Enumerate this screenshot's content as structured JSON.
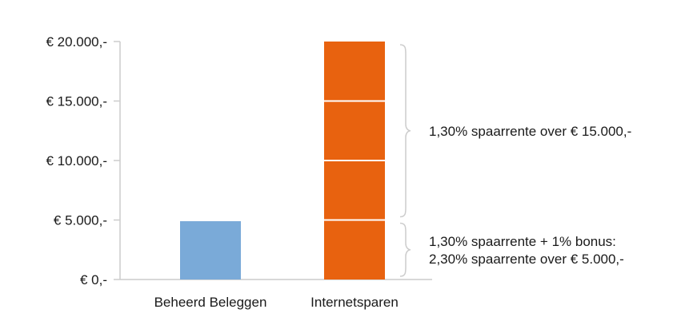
{
  "chart_data": {
    "type": "bar",
    "title": "",
    "xlabel": "",
    "ylabel": "",
    "ylim": [
      0,
      20000
    ],
    "grid": false,
    "y_ticks": [
      {
        "value": 0,
        "label": "€ 0,-"
      },
      {
        "value": 5000,
        "label": "€ 5.000,-"
      },
      {
        "value": 10000,
        "label": "€ 10.000,-"
      },
      {
        "value": 15000,
        "label": "€ 15.000,-"
      },
      {
        "value": 20000,
        "label": "€ 20.000,-"
      }
    ],
    "categories": [
      "Beheerd Beleggen",
      "Internetsparen"
    ],
    "bars": [
      {
        "category": "Beheerd Beleggen",
        "value": 4900,
        "color": "#7aaad8"
      },
      {
        "category": "Internetsparen",
        "value": 20000,
        "color": "#e8620f",
        "segment_dividers": [
          5000,
          10000,
          15000
        ]
      }
    ],
    "annotations": [
      {
        "lines": [
          "1,30% spaarrente over € 15.000,-"
        ],
        "range": [
          5000,
          20000
        ]
      },
      {
        "lines": [
          "1,30% spaarrente + 1% bonus:",
          "2,30% spaarrente over € 5.000,-"
        ],
        "range": [
          0,
          5000
        ]
      }
    ],
    "colors": {
      "axis": "#cccccc",
      "bracket": "#cccccc",
      "divider": "#ffffff"
    }
  }
}
